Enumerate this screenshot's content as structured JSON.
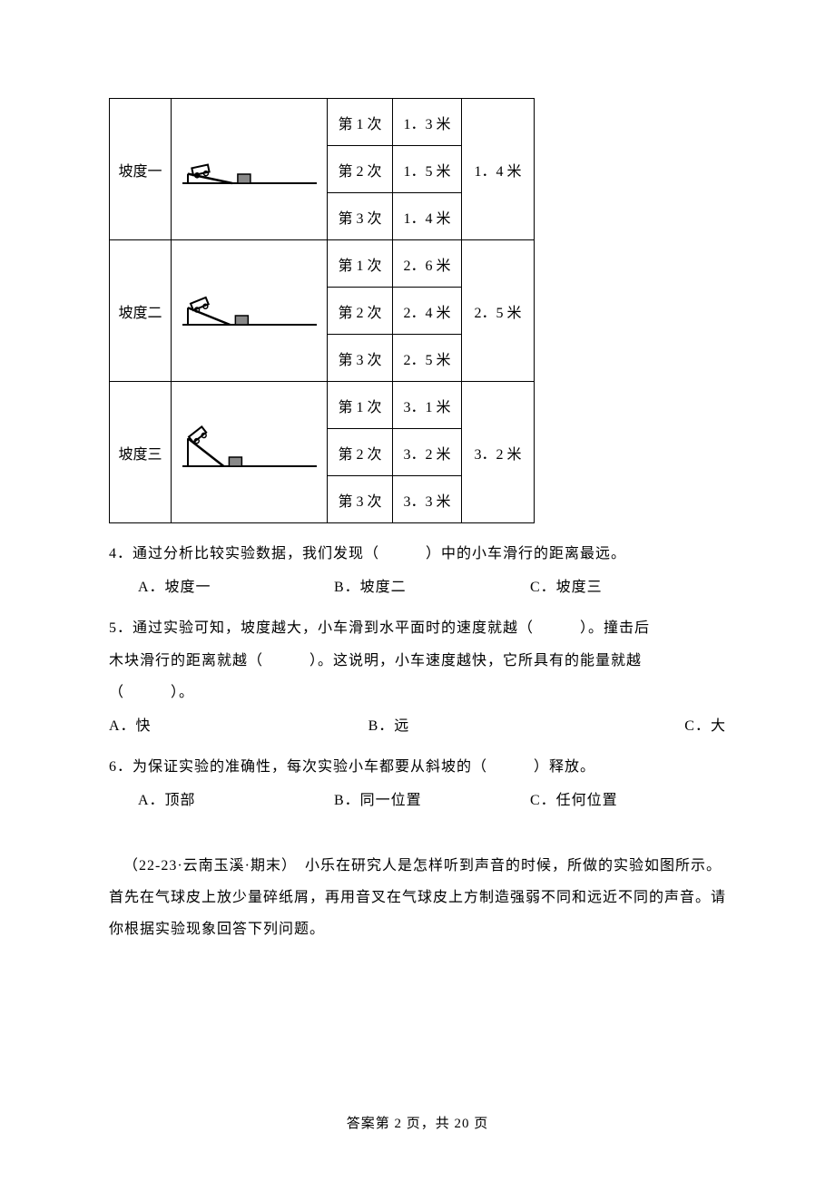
{
  "table": {
    "border_color": "#000000",
    "font_size": 16,
    "rows": [
      {
        "label": "坡度一",
        "diagram": {
          "slope_angle": 12,
          "stroke": "#000000"
        },
        "trials": [
          {
            "label": "第 1 次",
            "value": "1．3 米"
          },
          {
            "label": "第 2 次",
            "value": "1．5 米"
          },
          {
            "label": "第 3 次",
            "value": "1．4 米"
          }
        ],
        "average": "1．4 米"
      },
      {
        "label": "坡度二",
        "diagram": {
          "slope_angle": 22,
          "stroke": "#000000"
        },
        "trials": [
          {
            "label": "第 1 次",
            "value": "2．6 米"
          },
          {
            "label": "第 2 次",
            "value": "2．4 米"
          },
          {
            "label": "第 3 次",
            "value": "2．5 米"
          }
        ],
        "average": "2．5 米"
      },
      {
        "label": "坡度三",
        "diagram": {
          "slope_angle": 38,
          "stroke": "#000000"
        },
        "trials": [
          {
            "label": "第 1 次",
            "value": "3．1 米"
          },
          {
            "label": "第 2 次",
            "value": "3．2 米"
          },
          {
            "label": "第 3 次",
            "value": "3．3 米"
          }
        ],
        "average": "3．2 米"
      }
    ]
  },
  "q4": {
    "text": "4．通过分析比较实验数据，我们发现（　　　）中的小车滑行的距离最远。",
    "opts": {
      "a": "A．坡度一",
      "b": "B．坡度二",
      "c": "C．坡度三"
    }
  },
  "q5": {
    "line1": "5．通过实验可知，坡度越大，小车滑到水平面时的速度就越（　　　）。撞击后",
    "line2": "木块滑行的距离就越（　　　）。这说明，小车速度越快，它所具有的能量就越",
    "line3": "（　　　）。",
    "opts": {
      "a": "A．快",
      "b": "B．远",
      "c": "C．大"
    }
  },
  "q6": {
    "text": "6．为保证实验的准确性，每次实验小车都要从斜坡的（　　　）释放。",
    "opts": {
      "a": "A．顶部",
      "b": "B．同一位置",
      "c": "C．任何位置"
    }
  },
  "paragraph": "（22-23·云南玉溪·期末）　小乐在研究人是怎样听到声音的时候，所做的实验如图所示。首先在气球皮上放少量碎纸屑，再用音叉在气球皮上方制造强弱不同和远近不同的声音。请你根据实验现象回答下列问题。",
  "footer": "答案第 2 页，共 20 页"
}
